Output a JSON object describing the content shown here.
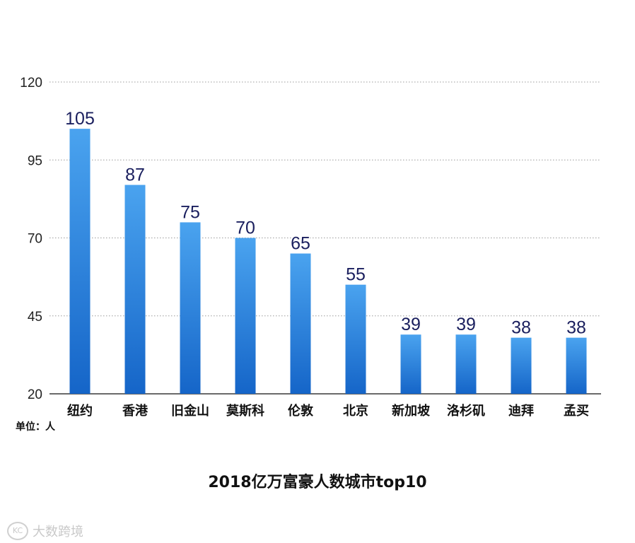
{
  "chart_data": {
    "type": "bar",
    "title": "2018亿万富豪人数城市top10",
    "unit_label": "单位：人",
    "categories": [
      "纽约",
      "香港",
      "旧金山",
      "莫斯科",
      "伦敦",
      "北京",
      "新加坡",
      "洛杉矶",
      "迪拜",
      "孟买"
    ],
    "values": [
      105,
      87,
      75,
      70,
      65,
      55,
      39,
      39,
      38,
      38
    ],
    "ylim": [
      20,
      120
    ],
    "yticks": [
      20,
      45,
      70,
      95,
      120
    ],
    "grid": true,
    "bar_color_top": "#4aa3ef",
    "bar_color_bottom": "#1565c8",
    "label_color": "#1a1f5e"
  },
  "watermark": {
    "logo": "KC",
    "text": "大数跨境"
  }
}
